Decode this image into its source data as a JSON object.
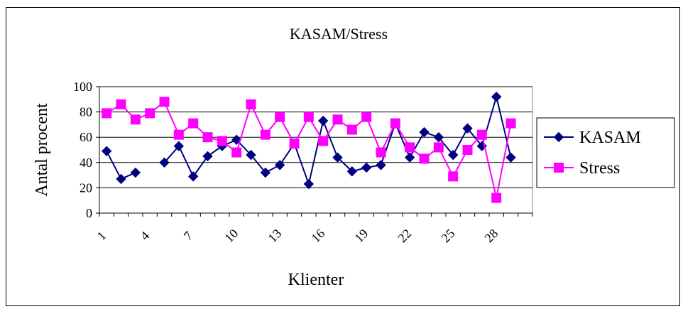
{
  "chart_data": {
    "type": "line",
    "title": "KASAM/Stress",
    "xlabel": "Klienter",
    "ylabel": "Antal procent",
    "ylim": [
      0,
      100
    ],
    "yticks": [
      0,
      20,
      40,
      60,
      80,
      100
    ],
    "xtick_labels": [
      "1",
      "4",
      "7",
      "10",
      "13",
      "16",
      "19",
      "22",
      "25",
      "28"
    ],
    "grid": true,
    "legend_position": "right",
    "x": [
      1,
      2,
      3,
      4,
      5,
      6,
      7,
      8,
      9,
      10,
      11,
      12,
      13,
      14,
      15,
      16,
      17,
      18,
      19,
      20,
      21,
      22,
      23,
      24,
      25,
      26,
      27,
      28,
      29,
      30
    ],
    "series": [
      {
        "name": "KASAM",
        "color": "#000080",
        "marker": "diamond",
        "values": [
          49,
          27,
          32,
          null,
          40,
          53,
          29,
          45,
          53,
          58,
          46,
          32,
          38,
          55,
          23,
          73,
          44,
          33,
          36,
          38,
          71,
          44,
          64,
          60,
          46,
          67,
          53,
          92,
          44,
          null
        ]
      },
      {
        "name": "Stress",
        "color": "#FF00FF",
        "marker": "square",
        "values": [
          79,
          86,
          74,
          79,
          88,
          62,
          71,
          60,
          57,
          48,
          86,
          62,
          76,
          55,
          76,
          57,
          74,
          66,
          76,
          48,
          71,
          52,
          43,
          52,
          29,
          50,
          62,
          12,
          71,
          null
        ]
      }
    ]
  }
}
